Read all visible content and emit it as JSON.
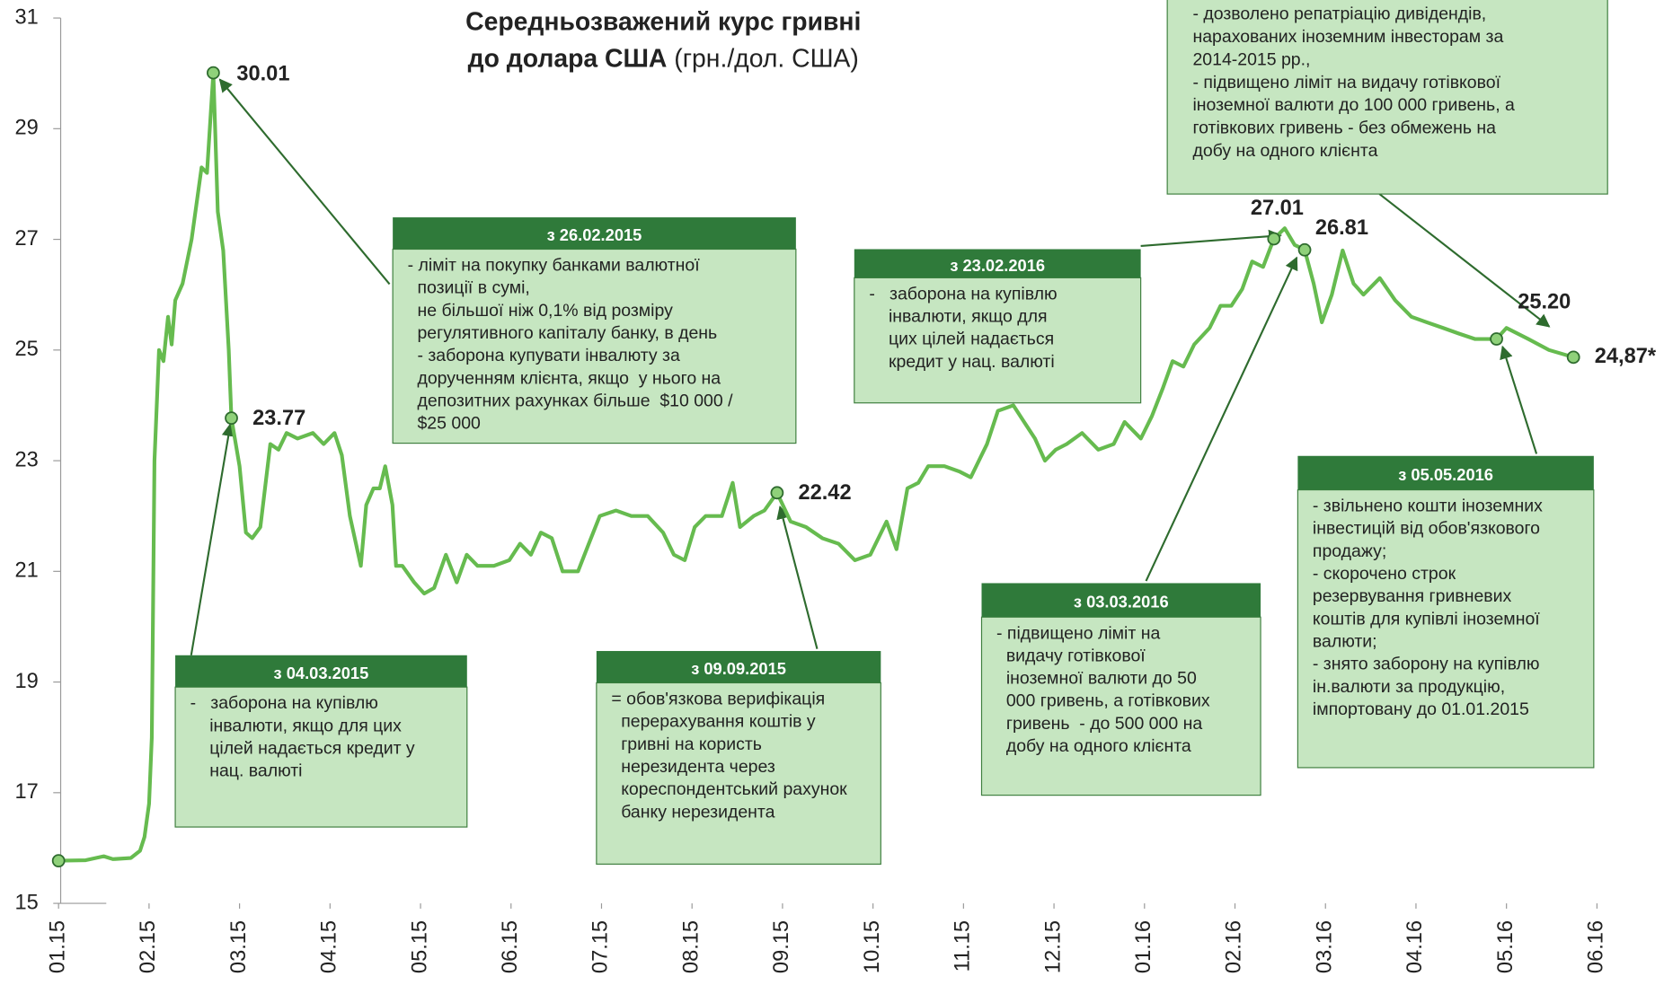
{
  "chart_data": {
    "type": "line",
    "title_line1": "Середньозважений курс гривні",
    "title_line2_bold": "до  долара США",
    "title_line2_rest": " (грн./дол. США)",
    "color": "#66bb4f",
    "xlim": [
      0,
      17
    ],
    "xticks": [
      {
        "value": 0,
        "label": "01.15"
      },
      {
        "value": 1,
        "label": "02.15"
      },
      {
        "value": 2,
        "label": "03.15"
      },
      {
        "value": 3,
        "label": "04.15"
      },
      {
        "value": 4,
        "label": "05.15"
      },
      {
        "value": 5,
        "label": "06.15"
      },
      {
        "value": 6,
        "label": "07.15"
      },
      {
        "value": 7,
        "label": "08.15"
      },
      {
        "value": 8,
        "label": "09.15"
      },
      {
        "value": 9,
        "label": "10.15"
      },
      {
        "value": 10,
        "label": "11.15"
      },
      {
        "value": 11,
        "label": "12.15"
      },
      {
        "value": 12,
        "label": "01.16"
      },
      {
        "value": 13,
        "label": "02.16"
      },
      {
        "value": 14,
        "label": "03.16"
      },
      {
        "value": 15,
        "label": "04.16"
      },
      {
        "value": 16,
        "label": "05.16"
      },
      {
        "value": 17,
        "label": "06.16"
      }
    ],
    "ylim": [
      15,
      31
    ],
    "yticks": [
      15,
      17,
      19,
      21,
      23,
      25,
      27,
      29,
      31
    ],
    "x": [
      0,
      0.3,
      0.5,
      0.6,
      0.8,
      0.9,
      0.95,
      1.0,
      1.03,
      1.06,
      1.11,
      1.16,
      1.21,
      1.25,
      1.29,
      1.37,
      1.47,
      1.58,
      1.64,
      1.71,
      1.76,
      1.82,
      1.88,
      1.91,
      2.0,
      2.07,
      2.14,
      2.23,
      2.34,
      2.43,
      2.52,
      2.64,
      2.81,
      2.93,
      3.05,
      3.13,
      3.22,
      3.34,
      3.4,
      3.48,
      3.55,
      3.61,
      3.69,
      3.73,
      3.8,
      3.93,
      4.04,
      4.15,
      4.28,
      4.4,
      4.51,
      4.63,
      4.81,
      4.98,
      5.1,
      5.22,
      5.33,
      5.45,
      5.57,
      5.74,
      5.86,
      5.98,
      6.16,
      6.33,
      6.51,
      6.68,
      6.8,
      6.92,
      7.03,
      7.15,
      7.33,
      7.45,
      7.53,
      7.68,
      7.8,
      7.94,
      8.09,
      8.26,
      8.44,
      8.62,
      8.8,
      8.97,
      9.15,
      9.26,
      9.38,
      9.5,
      9.61,
      9.79,
      9.96,
      10.08,
      10.26,
      10.38,
      10.55,
      10.67,
      10.79,
      10.9,
      11.02,
      11.14,
      11.31,
      11.49,
      11.66,
      11.78,
      11.96,
      12.08,
      12.2,
      12.31,
      12.43,
      12.55,
      12.72,
      12.84,
      12.96,
      13.08,
      13.19,
      13.31,
      13.43,
      13.55,
      13.66,
      13.77,
      13.87,
      13.96,
      14.07,
      14.19,
      14.31,
      14.42,
      14.6,
      14.77,
      14.95,
      15.12,
      15.3,
      15.47,
      15.65,
      15.89,
      16.0,
      16.24,
      16.47,
      16.74
    ],
    "values": [
      15.77,
      15.78,
      15.85,
      15.8,
      15.82,
      15.95,
      16.2,
      16.8,
      18.0,
      23.0,
      25.0,
      24.8,
      25.6,
      25.1,
      25.9,
      26.2,
      27.0,
      28.3,
      28.2,
      30.01,
      27.5,
      26.8,
      25.0,
      23.77,
      22.9,
      21.7,
      21.6,
      21.8,
      23.3,
      23.2,
      23.5,
      23.4,
      23.5,
      23.3,
      23.5,
      23.1,
      22.0,
      21.1,
      22.2,
      22.5,
      22.5,
      22.9,
      22.2,
      21.1,
      21.1,
      20.8,
      20.6,
      20.7,
      21.3,
      20.8,
      21.3,
      21.1,
      21.1,
      21.2,
      21.5,
      21.3,
      21.7,
      21.6,
      21.0,
      21.0,
      21.5,
      22.0,
      22.1,
      22.0,
      22.0,
      21.7,
      21.3,
      21.2,
      21.8,
      22.0,
      22.0,
      22.6,
      21.8,
      22.0,
      22.1,
      22.42,
      21.9,
      21.8,
      21.6,
      21.5,
      21.2,
      21.3,
      21.9,
      21.4,
      22.5,
      22.6,
      22.9,
      22.9,
      22.8,
      22.7,
      23.3,
      23.9,
      24.0,
      23.7,
      23.4,
      23.0,
      23.2,
      23.3,
      23.5,
      23.2,
      23.3,
      23.7,
      23.4,
      23.8,
      24.3,
      24.8,
      24.7,
      25.1,
      25.4,
      25.8,
      25.8,
      26.1,
      26.6,
      26.5,
      27.01,
      27.2,
      26.9,
      26.81,
      26.2,
      25.5,
      26.0,
      26.8,
      26.2,
      26.0,
      26.3,
      25.9,
      25.6,
      25.5,
      25.4,
      25.3,
      25.2,
      25.2,
      25.4,
      25.2,
      25.0,
      24.87
    ],
    "annotations": [
      {
        "label": "30.01",
        "x": 1.71,
        "value": 30.01
      },
      {
        "label": "23.77",
        "x": 1.91,
        "value": 23.77
      },
      {
        "label": "22.42",
        "x": 7.94,
        "value": 22.42
      },
      {
        "label": "27.01",
        "x": 13.43,
        "value": 27.01
      },
      {
        "label": "26.81",
        "x": 13.77,
        "value": 26.81
      },
      {
        "label": "25.20",
        "x": 15.89,
        "value": 25.2
      },
      {
        "label": "24,87*",
        "x": 16.74,
        "value": 24.87
      }
    ],
    "notes": [
      {
        "title": "з 26.02.2015",
        "lines": [
          "- ліміт на покупку банками валютної",
          "  позиції в сумі,",
          "  не більшої ніж 0,1% від розміру",
          "  регулятивного капіталу банку, в день",
          "  - заборона купувати інвалюту за",
          "  дорученням клієнта, якщо  у нього на",
          "  депозитних рахунках більше  $10 000 /",
          "  $25 000"
        ]
      },
      {
        "title": "з 04.03.2015",
        "lines": [
          "-   заборона на купівлю",
          "    інвалюти, якщо для цих",
          "    цілей надається кредит у",
          "    нац. валюті"
        ]
      },
      {
        "title": "з 09.09.2015",
        "lines": [
          "= обов'язкова верифікація",
          "  перерахування коштів у",
          "  гривні на користь",
          "  нерезидента через",
          "  кореспондентський рахунок",
          "  банку нерезидента"
        ]
      },
      {
        "title": "з 23.02.2016",
        "lines": [
          "-   заборона на купівлю",
          "    інвалюти, якщо для",
          "    цих цілей надається",
          "    кредит у нац. валюті"
        ]
      },
      {
        "lines": [
          "- дозволено репатріацію дивідендів,",
          "нарахованих іноземним інвесторам за",
          "2014-2015 рр.,",
          "- підвищено ліміт на видачу готівкової",
          "іноземної валюти до 100 000 гривень, а",
          "готівкових гривень - без обмежень на",
          "добу на одного клієнта"
        ]
      },
      {
        "title": "з 03.03.2016",
        "lines": [
          "- підвищено ліміт на",
          "  видачу готівкової",
          "  іноземної валюти до 50",
          "  000 гривень, а готівкових",
          "  гривень  - до 500 000 на",
          "  добу на одного клієнта"
        ]
      },
      {
        "title": "з 05.05.2016",
        "lines": [
          "- звільнено кошти іноземних",
          "інвестицій від обов'язкового",
          "продажу;",
          "- скорочено строк",
          "резервування гривневих",
          "коштів для купівлі іноземної",
          "валюти;",
          "- знято заборону на купівлю",
          "ін.валюти за продукцію,",
          "імпортовану до 01.01.2015"
        ]
      }
    ]
  }
}
